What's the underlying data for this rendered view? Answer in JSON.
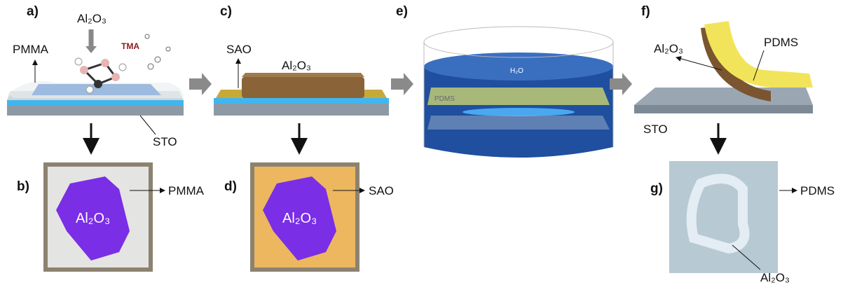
{
  "panels": [
    {
      "label": "a)",
      "texts": [
        "Al₂O₃",
        "TMA",
        "PMMA",
        "STO"
      ]
    },
    {
      "label": "b)",
      "texts": [
        "PMMA",
        "Al₂O₃"
      ]
    },
    {
      "label": "c)",
      "texts": [
        "SAO",
        "Al₂O₃"
      ]
    },
    {
      "label": "d)",
      "texts": [
        "SAO",
        "Al₂O₃"
      ]
    },
    {
      "label": "e)",
      "texts": [
        "H₂O",
        "PDMS"
      ]
    },
    {
      "label": "f)",
      "texts": [
        "Al₂O₃",
        "PDMS",
        "STO"
      ]
    },
    {
      "label": "g)",
      "texts": [
        "PDMS",
        "Al₂O₃"
      ]
    }
  ]
}
